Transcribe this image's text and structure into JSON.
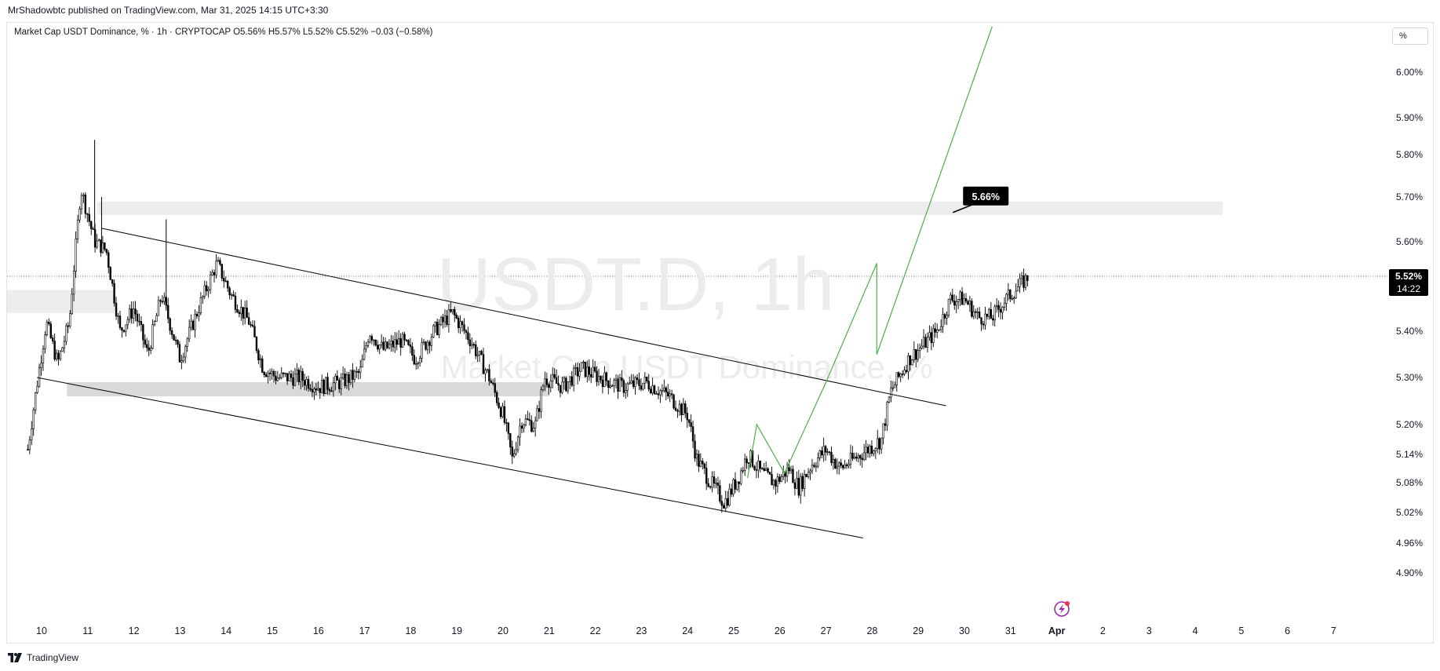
{
  "header": {
    "published": "MrShadowbtc published on TradingView.com, Mar 31, 2025 14:15 UTC+3:30",
    "legend": "Market Cap USDT Dominance, % · 1h · CRYPTOCAP  O5.56%  H5.57%  L5.52%  C5.52%  −0.03 (−0.58%)"
  },
  "scale_button": "%",
  "watermark": {
    "symbol": "USDT.D, 1h",
    "name": "Market Cap USDT Dominance, %"
  },
  "price_tag": {
    "value": "5.52%",
    "countdown": "14:22"
  },
  "target_label": "5.66%",
  "footer": {
    "brand": "TradingView"
  },
  "chart_data": {
    "type": "candlestick",
    "symbol": "USDT.D",
    "interval": "1h",
    "x_ticks": [
      "10",
      "11",
      "12",
      "13",
      "14",
      "15",
      "16",
      "17",
      "18",
      "19",
      "20",
      "21",
      "22",
      "23",
      "24",
      "25",
      "26",
      "27",
      "28",
      "29",
      "30",
      "31",
      "Apr",
      "2",
      "3",
      "4",
      "5",
      "6",
      "7"
    ],
    "y_ticks": [
      "6.00%",
      "5.90%",
      "5.80%",
      "5.70%",
      "5.60%",
      "5.40%",
      "5.30%",
      "5.20%",
      "5.14%",
      "5.08%",
      "5.02%",
      "4.96%",
      "4.90%"
    ],
    "last_close": 5.52,
    "ohlc": {
      "open": 5.56,
      "high": 5.57,
      "low": 5.52,
      "close": 5.52,
      "change": -0.03,
      "change_pct": -0.58
    },
    "price_path": [
      [
        9.7,
        5.15
      ],
      [
        10.1,
        5.42
      ],
      [
        10.35,
        5.33
      ],
      [
        10.6,
        5.42
      ],
      [
        10.85,
        5.72
      ],
      [
        11.15,
        5.6
      ],
      [
        11.4,
        5.58
      ],
      [
        11.7,
        5.4
      ],
      [
        12.0,
        5.45
      ],
      [
        12.3,
        5.35
      ],
      [
        12.6,
        5.48
      ],
      [
        13.0,
        5.34
      ],
      [
        13.4,
        5.45
      ],
      [
        13.8,
        5.55
      ],
      [
        14.1,
        5.48
      ],
      [
        14.5,
        5.42
      ],
      [
        14.8,
        5.32
      ],
      [
        15.1,
        5.3
      ],
      [
        15.6,
        5.3
      ],
      [
        16.0,
        5.28
      ],
      [
        16.5,
        5.29
      ],
      [
        16.9,
        5.31
      ],
      [
        17.1,
        5.4
      ],
      [
        17.4,
        5.36
      ],
      [
        17.8,
        5.38
      ],
      [
        18.1,
        5.34
      ],
      [
        18.5,
        5.4
      ],
      [
        18.9,
        5.44
      ],
      [
        19.3,
        5.38
      ],
      [
        19.7,
        5.3
      ],
      [
        20.0,
        5.22
      ],
      [
        20.2,
        5.13
      ],
      [
        20.4,
        5.21
      ],
      [
        20.7,
        5.2
      ],
      [
        20.9,
        5.3
      ],
      [
        21.3,
        5.28
      ],
      [
        21.7,
        5.32
      ],
      [
        22.1,
        5.3
      ],
      [
        22.6,
        5.28
      ],
      [
        23.1,
        5.29
      ],
      [
        23.6,
        5.26
      ],
      [
        24.0,
        5.22
      ],
      [
        24.2,
        5.13
      ],
      [
        24.5,
        5.08
      ],
      [
        24.8,
        5.04
      ],
      [
        25.1,
        5.09
      ],
      [
        25.3,
        5.14
      ],
      [
        25.6,
        5.1
      ],
      [
        25.9,
        5.08
      ],
      [
        26.2,
        5.11
      ],
      [
        26.4,
        5.07
      ],
      [
        26.7,
        5.12
      ],
      [
        27.0,
        5.15
      ],
      [
        27.3,
        5.11
      ],
      [
        27.6,
        5.13
      ],
      [
        27.9,
        5.15
      ],
      [
        28.2,
        5.17
      ],
      [
        28.4,
        5.27
      ],
      [
        28.8,
        5.34
      ],
      [
        29.1,
        5.37
      ],
      [
        29.4,
        5.4
      ],
      [
        29.7,
        5.47
      ],
      [
        30.0,
        5.47
      ],
      [
        30.3,
        5.43
      ],
      [
        30.6,
        5.43
      ],
      [
        30.9,
        5.47
      ],
      [
        31.1,
        5.49
      ],
      [
        31.4,
        5.52
      ]
    ],
    "drawings": {
      "descending_channel_upper": {
        "from": [
          11.3,
          5.63
        ],
        "to": [
          29.6,
          5.24
        ]
      },
      "descending_channel_lower": {
        "from": [
          9.9,
          5.3
        ],
        "to": [
          27.8,
          4.97
        ]
      },
      "resistance_zone": {
        "low": 5.66,
        "high": 5.69,
        "label": "5.66%"
      },
      "support_zone": {
        "low": 5.26,
        "high": 5.29
      },
      "left_zone": {
        "low": 5.44,
        "high": 5.49
      },
      "projection_path": [
        [
          25.3,
          5.09
        ],
        [
          25.5,
          5.2
        ],
        [
          26.1,
          5.1
        ],
        [
          27.0,
          5.29
        ],
        [
          28.1,
          5.55
        ],
        [
          28.1,
          5.35
        ],
        [
          30.6,
          6.1
        ]
      ]
    }
  }
}
